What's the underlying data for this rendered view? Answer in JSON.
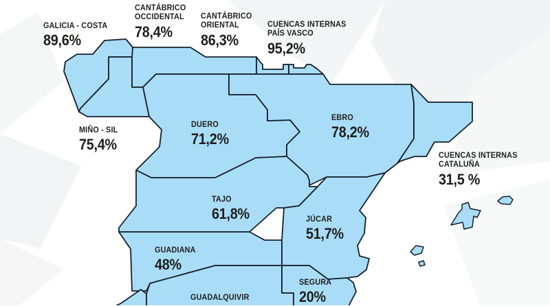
{
  "figure": {
    "type": "choropleth-map",
    "subject": "Hydrographic basins of Spain with percentage values",
    "unit": "%"
  },
  "colors": {
    "region_fill": "#A9DDF7",
    "region_border": "#15202B",
    "label_text": "#1E1E1D",
    "background": "#FFFFFF",
    "background_shapes": "#F3F4F5"
  },
  "map": {
    "basins": [
      {
        "id": "galicia-costa",
        "name": "GALICIA - COSTA",
        "name_lines": [
          "GALICIA - COSTA"
        ],
        "value": "89,6%",
        "value_num": 89.6
      },
      {
        "id": "cantabrico-occidental",
        "name": "CANTÁBRICO OCCIDENTAL",
        "name_lines": [
          "CANTÁBRICO",
          "OCCIDENTAL"
        ],
        "value": "78,4%",
        "value_num": 78.4
      },
      {
        "id": "cantabrico-oriental",
        "name": "CANTÁBRICO ORIENTAL",
        "name_lines": [
          "CANTÁBRICO",
          "ORIENTAL"
        ],
        "value": "86,3%",
        "value_num": 86.3
      },
      {
        "id": "cuencas-internas-pais-vasco",
        "name": "CUENCAS INTERNAS PAÍS VASCO",
        "name_lines": [
          "CUENCAS INTERNAS",
          "PAÍS VASCO"
        ],
        "value": "95,2%",
        "value_num": 95.2
      },
      {
        "id": "mino-sil",
        "name": "MIÑO - SIL",
        "name_lines": [
          "MIÑO - SIL"
        ],
        "value": "75,4%",
        "value_num": 75.4
      },
      {
        "id": "duero",
        "name": "DUERO",
        "name_lines": [
          "DUERO"
        ],
        "value": "71,2%",
        "value_num": 71.2
      },
      {
        "id": "ebro",
        "name": "EBRO",
        "name_lines": [
          "EBRO"
        ],
        "value": "78,2%",
        "value_num": 78.2
      },
      {
        "id": "cuencas-internas-cataluna",
        "name": "CUENCAS INTERNAS CATALUÑA",
        "name_lines": [
          "CUENCAS INTERNAS",
          "CATALUÑA"
        ],
        "value": "31,5 %",
        "value_num": 31.5
      },
      {
        "id": "tajo",
        "name": "TAJO",
        "name_lines": [
          "TAJO"
        ],
        "value": "61,8%",
        "value_num": 61.8
      },
      {
        "id": "jucar",
        "name": "JÚCAR",
        "name_lines": [
          "JÚCAR"
        ],
        "value": "51,7%",
        "value_num": 51.7
      },
      {
        "id": "guadiana",
        "name": "GUADIANA",
        "name_lines": [
          "GUADIANA"
        ],
        "value": "48%",
        "value_num": 48
      },
      {
        "id": "segura",
        "name": "SEGURA",
        "name_lines": [
          "SEGURA"
        ],
        "value": "20%",
        "value_num": 20
      },
      {
        "id": "guadalquivir",
        "name": "GUADALQUIVIR",
        "name_lines": [
          "GUADALQUIVIR"
        ],
        "value": null,
        "value_num": null
      }
    ]
  },
  "chart_data": {
    "type": "choropleth",
    "unit": "%",
    "categories": [
      "GALICIA - COSTA",
      "CANTÁBRICO OCCIDENTAL",
      "CANTÁBRICO ORIENTAL",
      "CUENCAS INTERNAS PAÍS VASCO",
      "MIÑO - SIL",
      "DUERO",
      "EBRO",
      "CUENCAS INTERNAS CATALUÑA",
      "TAJO",
      "JÚCAR",
      "GUADIANA",
      "SEGURA",
      "GUADALQUIVIR"
    ],
    "values": [
      89.6,
      78.4,
      86.3,
      95.2,
      75.4,
      71.2,
      78.2,
      31.5,
      61.8,
      51.7,
      48,
      20,
      null
    ]
  }
}
